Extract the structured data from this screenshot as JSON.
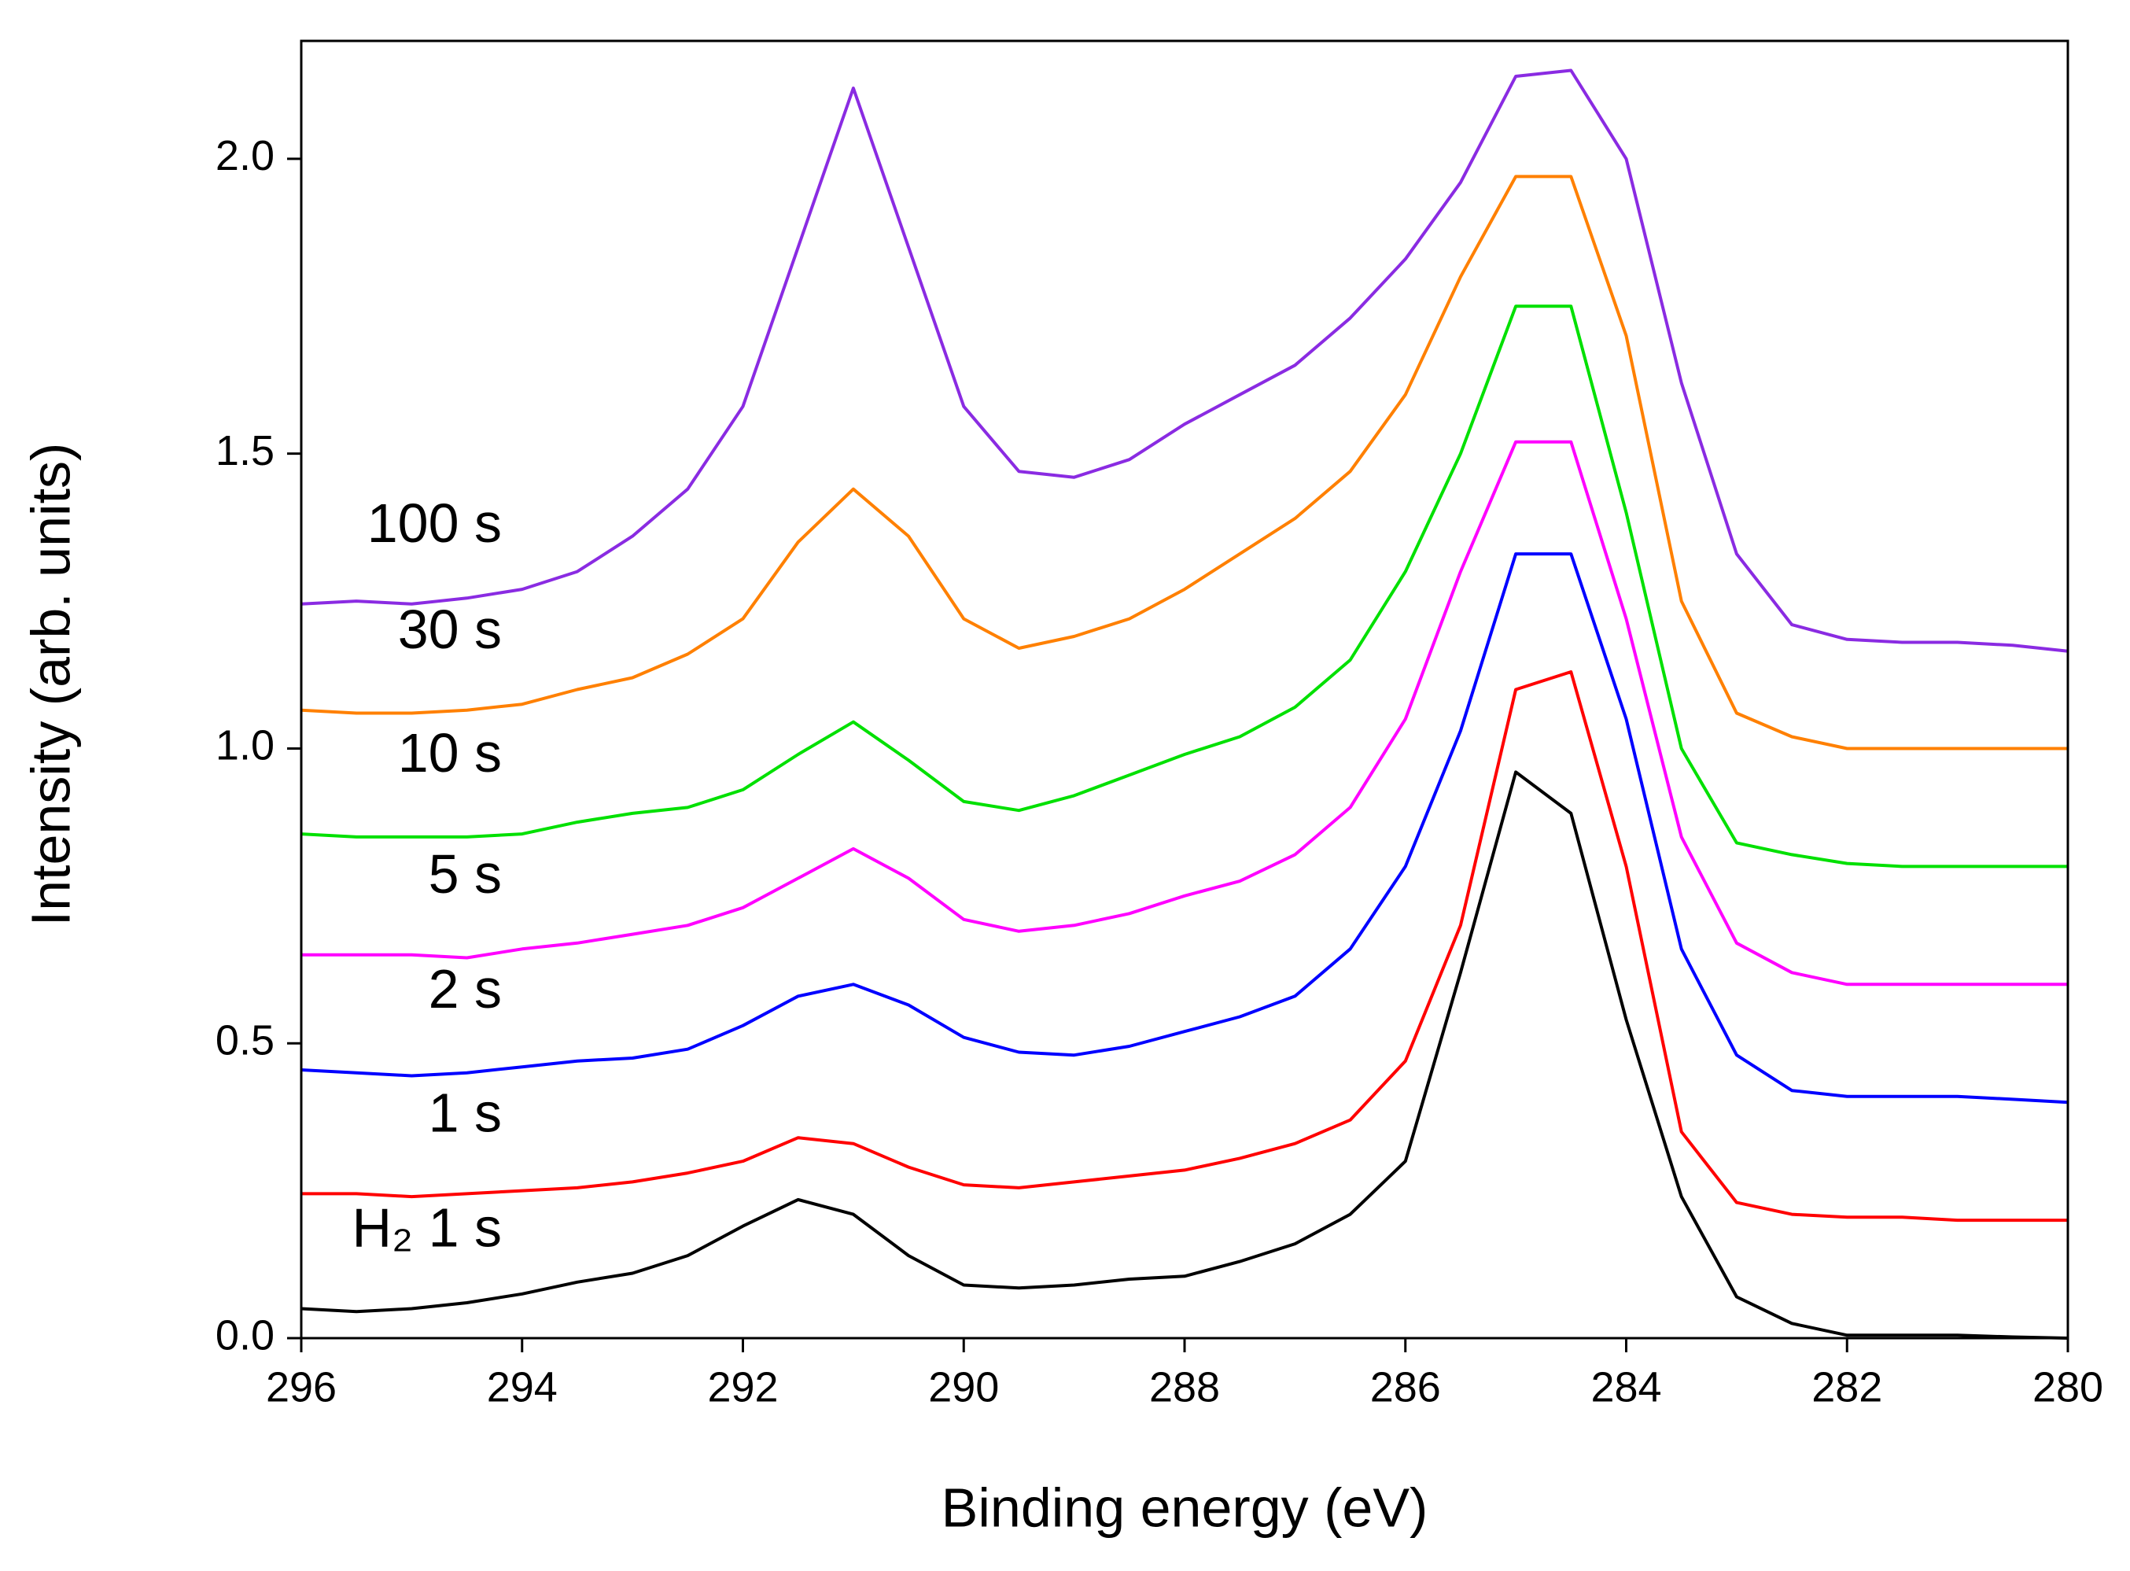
{
  "chart_data": {
    "type": "line",
    "xlabel": "Binding energy (eV)",
    "ylabel": "Intensity (arb. units)",
    "x": [
      296,
      295.5,
      295,
      294.5,
      294,
      293.5,
      293,
      292.5,
      292,
      291.5,
      291,
      290.5,
      290,
      289.5,
      289,
      288.5,
      288,
      287.5,
      287,
      286.5,
      286,
      285.5,
      285,
      284.5,
      284,
      283.5,
      283,
      282.5,
      282,
      281.5,
      281,
      280.5,
      280
    ],
    "xlim": [
      296,
      280
    ],
    "xticks": [
      296,
      294,
      292,
      290,
      288,
      286,
      284,
      282,
      280
    ],
    "ylim": [
      0,
      2.2
    ],
    "yticks": [
      {
        "value": 0,
        "label": "0.0"
      },
      0.5,
      {
        "value": 1,
        "label": "1.0"
      },
      1.5,
      {
        "value": 2,
        "label": "2.0"
      }
    ],
    "series": [
      {
        "name": "H₂ 1 s",
        "color": "#000000",
        "values": [
          0.05,
          0.045,
          0.05,
          0.06,
          0.075,
          0.095,
          0.11,
          0.14,
          0.19,
          0.235,
          0.21,
          0.14,
          0.09,
          0.085,
          0.09,
          0.1,
          0.105,
          0.13,
          0.16,
          0.21,
          0.3,
          0.62,
          0.96,
          0.89,
          0.54,
          0.24,
          0.07,
          0.025,
          0.005,
          0.005,
          0.005,
          0.002,
          0
        ]
      },
      {
        "name": "1 s",
        "color": "#ff0000",
        "values": [
          0.245,
          0.245,
          0.24,
          0.245,
          0.25,
          0.255,
          0.265,
          0.28,
          0.3,
          0.34,
          0.33,
          0.29,
          0.26,
          0.255,
          0.265,
          0.275,
          0.285,
          0.305,
          0.33,
          0.37,
          0.47,
          0.7,
          1.1,
          1.13,
          0.8,
          0.35,
          0.23,
          0.21,
          0.205,
          0.205,
          0.2,
          0.2,
          0.2
        ]
      },
      {
        "name": "2 s",
        "color": "#0000ff",
        "values": [
          0.455,
          0.45,
          0.445,
          0.45,
          0.46,
          0.47,
          0.475,
          0.49,
          0.53,
          0.58,
          0.6,
          0.565,
          0.51,
          0.485,
          0.48,
          0.495,
          0.52,
          0.545,
          0.58,
          0.66,
          0.8,
          1.03,
          1.33,
          1.33,
          1.05,
          0.66,
          0.48,
          0.42,
          0.41,
          0.41,
          0.41,
          0.405,
          0.4
        ]
      },
      {
        "name": "5 s",
        "color": "#ff00ff",
        "values": [
          0.65,
          0.65,
          0.65,
          0.645,
          0.66,
          0.67,
          0.685,
          0.7,
          0.73,
          0.78,
          0.83,
          0.78,
          0.71,
          0.69,
          0.7,
          0.72,
          0.75,
          0.775,
          0.82,
          0.9,
          1.05,
          1.3,
          1.52,
          1.52,
          1.22,
          0.85,
          0.67,
          0.62,
          0.6,
          0.6,
          0.6,
          0.6,
          0.6
        ]
      },
      {
        "name": "10 s",
        "color": "#00e000",
        "values": [
          0.855,
          0.85,
          0.85,
          0.85,
          0.855,
          0.875,
          0.89,
          0.9,
          0.93,
          0.99,
          1.045,
          0.98,
          0.91,
          0.895,
          0.92,
          0.955,
          0.99,
          1.02,
          1.07,
          1.15,
          1.3,
          1.5,
          1.75,
          1.75,
          1.4,
          1.0,
          0.84,
          0.82,
          0.805,
          0.8,
          0.8,
          0.8,
          0.8
        ]
      },
      {
        "name": "30 s",
        "color": "#ff8000",
        "values": [
          1.065,
          1.06,
          1.06,
          1.065,
          1.075,
          1.1,
          1.12,
          1.16,
          1.22,
          1.35,
          1.44,
          1.36,
          1.22,
          1.17,
          1.19,
          1.22,
          1.27,
          1.33,
          1.39,
          1.47,
          1.6,
          1.8,
          1.97,
          1.97,
          1.7,
          1.25,
          1.06,
          1.02,
          1.0,
          1.0,
          1.0,
          1.0,
          1.0
        ]
      },
      {
        "name": "100 s",
        "color": "#8a2be2",
        "values": [
          1.245,
          1.25,
          1.245,
          1.255,
          1.27,
          1.3,
          1.36,
          1.44,
          1.58,
          1.85,
          2.12,
          1.85,
          1.58,
          1.47,
          1.46,
          1.49,
          1.55,
          1.6,
          1.65,
          1.73,
          1.83,
          1.96,
          2.14,
          2.15,
          2.0,
          1.62,
          1.33,
          1.21,
          1.185,
          1.18,
          1.18,
          1.175,
          1.165
        ]
      }
    ]
  }
}
